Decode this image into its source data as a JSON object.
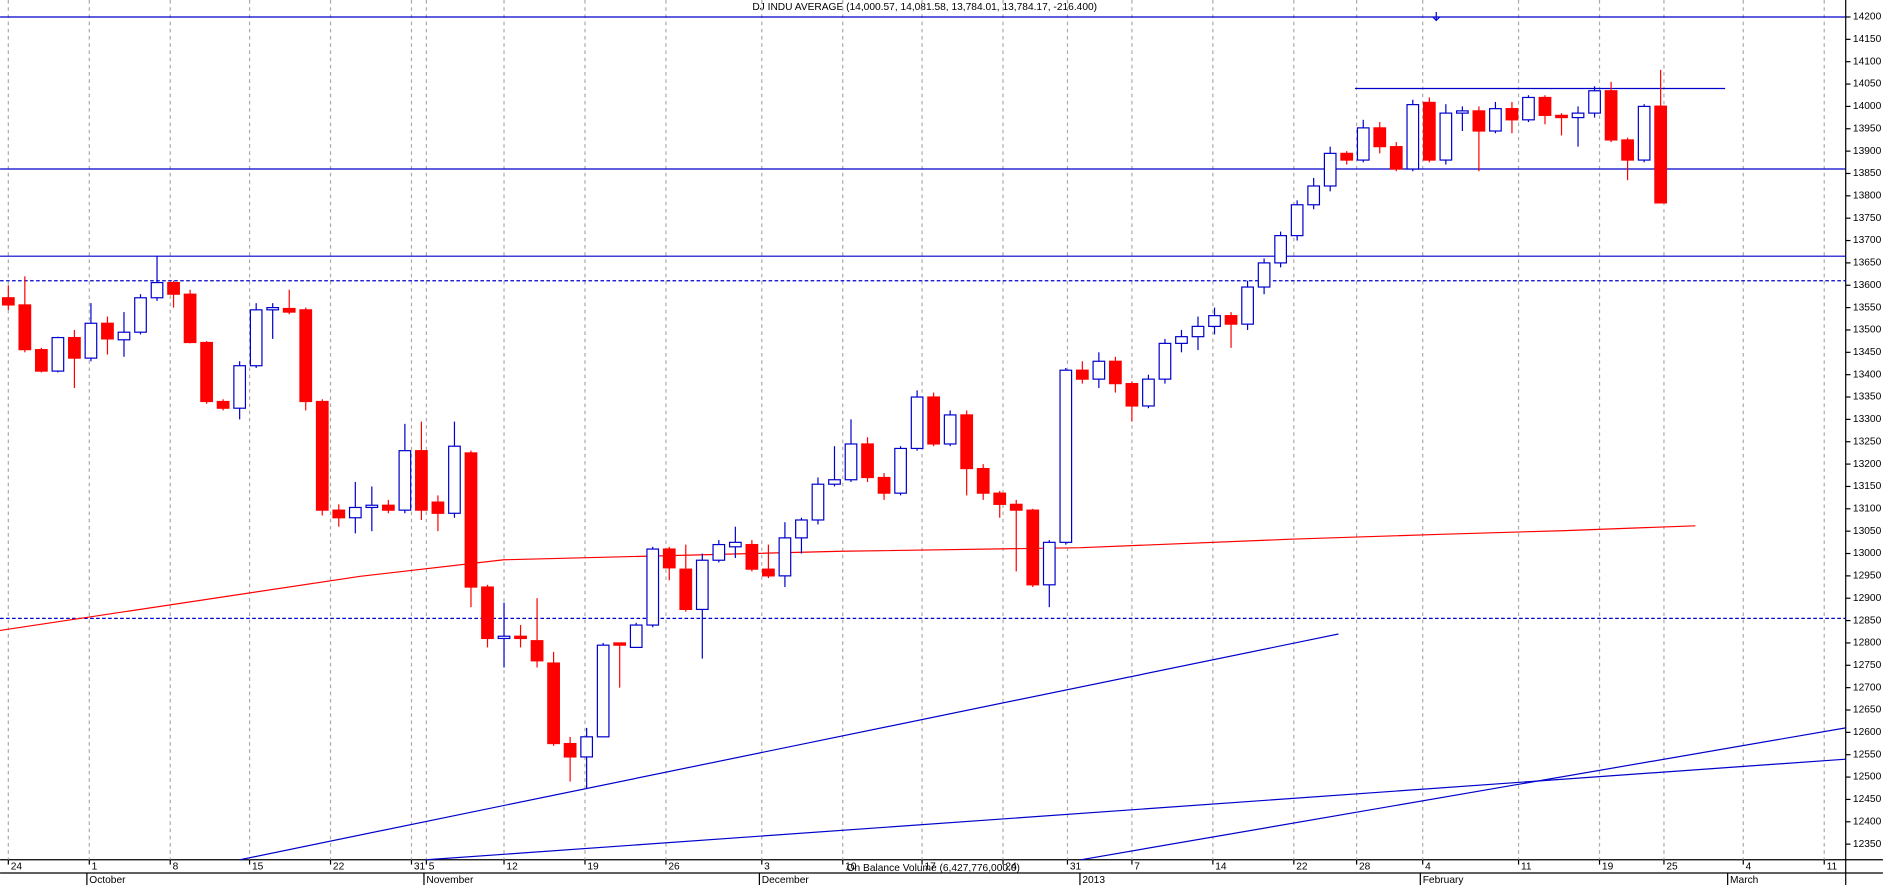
{
  "chart_data": {
    "type": "candlestick",
    "title": "DJ INDU AVERAGE (14,000.57, 14,081.58, 13,784.01, 13,784.17, -216.400)",
    "subtitle": "On Balance Volume (6,427,776,000.0)",
    "up_color": "#0000cc",
    "down_color": "#ff0000",
    "open": [
      13572,
      13556,
      13456,
      13408,
      13483,
      13437,
      13515,
      13478,
      13495,
      13572,
      13606,
      13580,
      13472,
      13340,
      13325,
      13420,
      13545,
      13548,
      13545,
      13340,
      13097,
      13080,
      13103,
      13108,
      13097,
      13230,
      13115,
      13090,
      13225,
      12925,
      12810,
      12815,
      12805,
      12755,
      12575,
      12545,
      12590,
      12800,
      12790,
      12840,
      13010,
      12965,
      12875,
      12985,
      13015,
      13020,
      12965,
      12950,
      13035,
      13075,
      13155,
      13165,
      13245,
      13170,
      13135,
      13235,
      13350,
      13245,
      13310,
      13190,
      13135,
      13110,
      13097,
      12930,
      13025,
      13410,
      13390,
      13430,
      13380,
      13330,
      13390,
      13470,
      13485,
      13508,
      13532,
      13513,
      13596,
      13650,
      13711,
      13780,
      13822,
      13895,
      13880,
      13952,
      13910,
      13860,
      14009,
      13880,
      13985,
      13990,
      13945,
      13995,
      13970,
      14020,
      13980,
      13975,
      13985,
      14035,
      13925,
      13880,
      14000.57
    ],
    "high": [
      13600,
      13620,
      13460,
      13485,
      13500,
      13560,
      13530,
      13540,
      13580,
      13665,
      13610,
      13590,
      13475,
      13345,
      13430,
      13560,
      13560,
      13590,
      13550,
      13345,
      13110,
      13160,
      13150,
      13120,
      13290,
      13295,
      13130,
      13295,
      13230,
      12930,
      12890,
      12840,
      12900,
      12780,
      12590,
      12610,
      12800,
      12800,
      12845,
      13015,
      13015,
      13020,
      13000,
      13030,
      13060,
      13030,
      13020,
      13070,
      13080,
      13170,
      13240,
      13300,
      13260,
      13180,
      13240,
      13365,
      13360,
      13320,
      13320,
      13200,
      13140,
      13120,
      13100,
      13030,
      13415,
      13430,
      13450,
      13440,
      13385,
      13400,
      13480,
      13500,
      13530,
      13550,
      13540,
      13610,
      13660,
      13720,
      13790,
      13840,
      13910,
      13900,
      13970,
      13965,
      13920,
      14015,
      14020,
      14005,
      14000,
      14000,
      14010,
      14010,
      14025,
      14025,
      13985,
      14000,
      14045,
      14055,
      13930,
      14005,
      14081.58
    ],
    "low": [
      13545,
      13450,
      13405,
      13405,
      13370,
      13430,
      13445,
      13440,
      13490,
      13565,
      13550,
      13470,
      13335,
      13320,
      13300,
      13415,
      13480,
      13535,
      13320,
      13085,
      13060,
      13045,
      13050,
      13090,
      13090,
      13075,
      13050,
      13080,
      12880,
      12790,
      12745,
      12790,
      12745,
      12570,
      12490,
      12475,
      12590,
      12700,
      12790,
      12835,
      12940,
      12870,
      12765,
      12980,
      12990,
      12960,
      12945,
      12925,
      13000,
      13065,
      13150,
      13160,
      13160,
      13120,
      13130,
      13230,
      13240,
      13240,
      13130,
      13120,
      13080,
      12960,
      12925,
      12880,
      13020,
      13380,
      13370,
      13360,
      13295,
      13325,
      13380,
      13450,
      13455,
      13490,
      13460,
      13500,
      13580,
      13640,
      13700,
      13770,
      13810,
      13870,
      13875,
      13895,
      13855,
      13855,
      13875,
      13870,
      13945,
      13855,
      13940,
      13940,
      13965,
      13960,
      13935,
      13910,
      13975,
      13920,
      13835,
      13875,
      13784.01
    ],
    "close": [
      13556,
      13456,
      13408,
      13483,
      13437,
      13515,
      13480,
      13495,
      13572,
      13606,
      13580,
      13472,
      13340,
      13325,
      13420,
      13545,
      13550,
      13540,
      13340,
      13097,
      13080,
      13103,
      13108,
      13097,
      13230,
      13097,
      13090,
      13240,
      12925,
      12810,
      12815,
      12810,
      12760,
      12575,
      12545,
      12590,
      12795,
      12795,
      12840,
      13010,
      12968,
      12875,
      12985,
      13020,
      13025,
      12965,
      12950,
      13035,
      13075,
      13155,
      13165,
      13245,
      13170,
      13135,
      13235,
      13350,
      13245,
      13310,
      13190,
      13135,
      13110,
      13097,
      12930,
      13025,
      13410,
      13390,
      13430,
      13380,
      13330,
      13390,
      13470,
      13485,
      13508,
      13532,
      13513,
      13596,
      13650,
      13711,
      13780,
      13822,
      13895,
      13880,
      13952,
      13910,
      13860,
      14004,
      13880,
      13985,
      13990,
      13945,
      13995,
      13970,
      14020,
      13980,
      13975,
      13985,
      14035,
      13925,
      13880,
      14000,
      13784.17
    ],
    "moving_average": {
      "color": "#ff0000",
      "x": [
        -0.5,
        21.3,
        30,
        50.4,
        64.9,
        77.6,
        86.7,
        94,
        102.1
      ],
      "values": [
        12828,
        12949,
        12986,
        13005,
        13013,
        13032,
        13043,
        13051,
        13062
      ]
    },
    "hlines": [
      {
        "value": 14200,
        "style": "solid"
      },
      {
        "value": 13860,
        "style": "solid"
      },
      {
        "value": 13665,
        "style": "solid"
      },
      {
        "value": 13610,
        "style": "dashed"
      },
      {
        "value": 12855,
        "style": "dashed"
      }
    ],
    "segments": [
      {
        "x": [
          81.5,
          103.9
        ],
        "values": [
          14040,
          14040
        ]
      }
    ],
    "trendlines": [
      {
        "x": [
          14,
          80.5
        ],
        "values": [
          12315,
          12820
        ]
      },
      {
        "x": [
          25.3,
          111.2
        ],
        "values": [
          12315,
          12540
        ]
      },
      {
        "x": [
          64.9,
          111.2
        ],
        "values": [
          12315,
          12610
        ]
      }
    ],
    "line_color": "#0000cc",
    "xlim": [
      -0.5,
      111.2
    ],
    "ylim": [
      12315,
      14238
    ],
    "xticks": [
      {
        "value": 0,
        "label": "24"
      },
      {
        "value": 4.9,
        "label": "1"
      },
      {
        "value": 9.8,
        "label": "8"
      },
      {
        "value": 14.6,
        "label": "15"
      },
      {
        "value": 19.5,
        "label": "22"
      },
      {
        "value": 24.4,
        "label": "31"
      },
      {
        "value": 25.3,
        "label": "5"
      },
      {
        "value": 30,
        "label": "12"
      },
      {
        "value": 34.9,
        "label": "19"
      },
      {
        "value": 39.8,
        "label": "26"
      },
      {
        "value": 45.6,
        "label": "3"
      },
      {
        "value": 50.5,
        "label": "10"
      },
      {
        "value": 55.3,
        "label": "17"
      },
      {
        "value": 60.2,
        "label": "24"
      },
      {
        "value": 64.1,
        "label": "31"
      },
      {
        "value": 68,
        "label": "7"
      },
      {
        "value": 72.9,
        "label": "14"
      },
      {
        "value": 77.8,
        "label": "22"
      },
      {
        "value": 81.6,
        "label": "28"
      },
      {
        "value": 85.6,
        "label": "4"
      },
      {
        "value": 91.4,
        "label": "11"
      },
      {
        "value": 96.3,
        "label": "19"
      },
      {
        "value": 100.2,
        "label": "25"
      },
      {
        "value": 105,
        "label": "4"
      },
      {
        "value": 109.9,
        "label": "11"
      }
    ],
    "month_labels": [
      {
        "value": 4.9,
        "label": "October"
      },
      {
        "value": 25.3,
        "label": "November"
      },
      {
        "value": 45.6,
        "label": "December"
      },
      {
        "value": 65,
        "label": "2013"
      },
      {
        "value": 85.6,
        "label": "February"
      },
      {
        "value": 104.2,
        "label": "March"
      }
    ],
    "yticks": [
      12350,
      12400,
      12450,
      12500,
      12550,
      12600,
      12650,
      12700,
      12750,
      12800,
      12850,
      12900,
      12950,
      13000,
      13050,
      13100,
      13150,
      13200,
      13250,
      13300,
      13350,
      13400,
      13450,
      13500,
      13550,
      13600,
      13650,
      13700,
      13750,
      13800,
      13850,
      13900,
      13950,
      14000,
      14050,
      14100,
      14150,
      14200
    ],
    "grid": true
  }
}
